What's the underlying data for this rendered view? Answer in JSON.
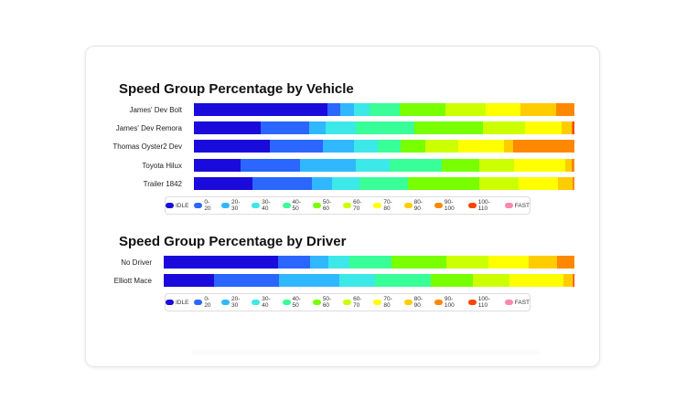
{
  "chart_data": [
    {
      "type": "bar",
      "orientation": "horizontal",
      "stacked": true,
      "unit": "percent",
      "title": "Speed Group Percentage by Vehicle",
      "categories": [
        "James' Dev Bolt",
        "James' Dev Remora",
        "Thomas Oyster2 Dev",
        "Toyota Hilux",
        "Trailer 1842"
      ],
      "series": [
        {
          "name": "IDLE",
          "values": [
            35.2,
            17.6,
            20.0,
            12.3,
            15.4
          ]
        },
        {
          "name": "0-20",
          "values": [
            3.3,
            12.7,
            14.0,
            15.6,
            15.6
          ]
        },
        {
          "name": "20-30",
          "values": [
            3.7,
            4.4,
            8.1,
            14.7,
            5.3
          ]
        },
        {
          "name": "30-40",
          "values": [
            4.0,
            7.8,
            6.3,
            8.9,
            7.2
          ]
        },
        {
          "name": "40-50",
          "values": [
            8.0,
            15.3,
            6.0,
            13.7,
            12.8
          ]
        },
        {
          "name": "50-60",
          "values": [
            11.9,
            18.1,
            6.5,
            9.9,
            18.7
          ]
        },
        {
          "name": "60-70",
          "values": [
            10.7,
            11.0,
            8.7,
            9.1,
            10.2
          ]
        },
        {
          "name": "70-80",
          "values": [
            9.0,
            9.7,
            11.8,
            13.3,
            10.5
          ]
        },
        {
          "name": "80-90",
          "values": [
            9.4,
            2.5,
            2.6,
            1.9,
            3.8
          ]
        },
        {
          "name": "90-100",
          "values": [
            4.9,
            0.4,
            16.0,
            0.6,
            0.4
          ]
        },
        {
          "name": "100-110",
          "values": [
            0,
            0.4,
            0,
            0,
            0
          ]
        },
        {
          "name": "FAST",
          "values": [
            0,
            0,
            0,
            0,
            0
          ]
        }
      ],
      "legend": "bottom"
    },
    {
      "type": "bar",
      "orientation": "horizontal",
      "stacked": true,
      "unit": "percent",
      "title": "Speed Group Percentage by Driver",
      "categories": [
        "No Driver",
        "Elliott Mace"
      ],
      "series": [
        {
          "name": "IDLE",
          "values": [
            27.8,
            12.3
          ]
        },
        {
          "name": "0-20",
          "values": [
            7.7,
            15.9
          ]
        },
        {
          "name": "20-30",
          "values": [
            4.6,
            14.5
          ]
        },
        {
          "name": "30-40",
          "values": [
            5.1,
            8.8
          ]
        },
        {
          "name": "40-50",
          "values": [
            10.1,
            13.7
          ]
        },
        {
          "name": "50-60",
          "values": [
            13.4,
            10.1
          ]
        },
        {
          "name": "60-70",
          "values": [
            10.4,
            9.0
          ]
        },
        {
          "name": "70-80",
          "values": [
            9.6,
            13.2
          ]
        },
        {
          "name": "80-90",
          "values": [
            6.9,
            2.2
          ]
        },
        {
          "name": "90-100",
          "values": [
            4.3,
            0.3
          ]
        },
        {
          "name": "100-110",
          "values": [
            0,
            0.1
          ]
        },
        {
          "name": "FAST",
          "values": [
            0,
            0
          ]
        }
      ],
      "legend": "bottom"
    }
  ],
  "colors": [
    "#1a0adc",
    "#2a66ff",
    "#30b8ff",
    "#3ce8e8",
    "#38ff98",
    "#78ff00",
    "#ccff00",
    "#ffff00",
    "#ffcc00",
    "#ff8800",
    "#ff4400",
    "#ff88aa"
  ]
}
